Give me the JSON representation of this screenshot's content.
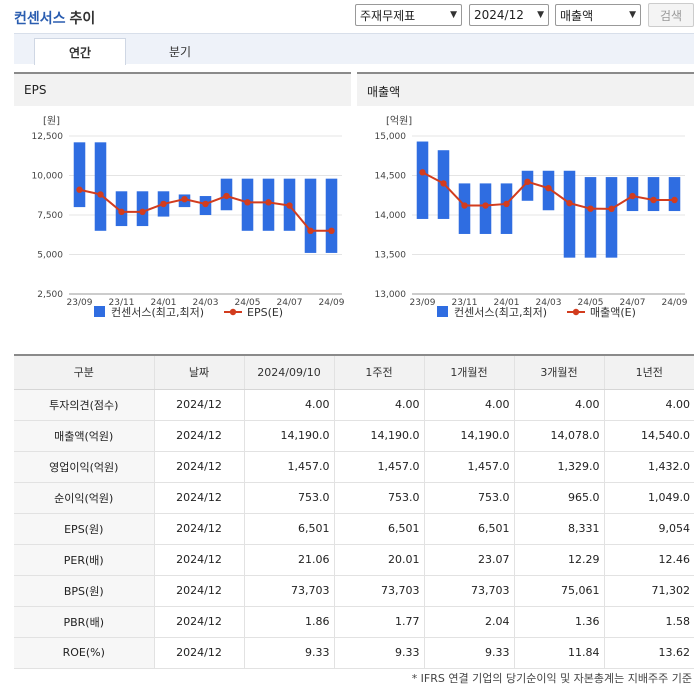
{
  "header": {
    "title": "컨센서스",
    "subtitle": "추이",
    "select_company": "주재무제표",
    "select_period": "2024/12",
    "select_metric": "매출액",
    "search_label": "검색"
  },
  "tabs": [
    {
      "label": "연간",
      "active": true
    },
    {
      "label": "분기",
      "active": false
    }
  ],
  "charts": {
    "eps": {
      "title": "EPS",
      "unit": "[원]",
      "legend_bar": "컨센서스(최고,최저)",
      "legend_line": "EPS(E)"
    },
    "revenue": {
      "title": "매출액",
      "unit": "[억원]",
      "legend_bar": "컨센서스(최고,최저)",
      "legend_line": "매출액(E)"
    }
  },
  "chart_data": [
    {
      "type": "bar",
      "title": "EPS",
      "ylabel": "[원]",
      "ylim": [
        2500,
        12500
      ],
      "yticks": [
        "12,500",
        "10,000",
        "7,500",
        "5,000",
        "2,500"
      ],
      "categories": [
        "23/09",
        "23/10",
        "23/11",
        "23/12",
        "24/01",
        "24/02",
        "24/03",
        "24/04",
        "24/05",
        "24/06",
        "24/07",
        "24/08",
        "24/09"
      ],
      "xtick_labels": [
        "23/09",
        "23/11",
        "24/01",
        "24/03",
        "24/05",
        "24/07",
        "24/09"
      ],
      "series": [
        {
          "name": "컨센서스(최고,최저)",
          "kind": "range",
          "high": [
            12100,
            12100,
            9000,
            9000,
            9000,
            8800,
            8700,
            9800,
            9800,
            9800,
            9800,
            9800,
            9800
          ],
          "low": [
            8000,
            6500,
            6800,
            6800,
            7400,
            8000,
            7500,
            7800,
            6500,
            6500,
            6500,
            5100,
            5100
          ],
          "color": "#2f6de1"
        },
        {
          "name": "EPS(E)",
          "kind": "line",
          "values": [
            9100,
            8800,
            7700,
            7700,
            8200,
            8500,
            8200,
            8700,
            8300,
            8300,
            8100,
            6500,
            6500
          ],
          "color": "#d23c1e"
        }
      ]
    },
    {
      "type": "bar",
      "title": "매출액",
      "ylabel": "[억원]",
      "ylim": [
        13000,
        15000
      ],
      "yticks": [
        "15,000",
        "14,500",
        "14,000",
        "13,500",
        "13,000"
      ],
      "categories": [
        "23/09",
        "23/10",
        "23/11",
        "23/12",
        "24/01",
        "24/02",
        "24/03",
        "24/04",
        "24/05",
        "24/06",
        "24/07",
        "24/08",
        "24/09"
      ],
      "xtick_labels": [
        "23/09",
        "23/11",
        "24/01",
        "24/03",
        "24/05",
        "24/07",
        "24/09"
      ],
      "series": [
        {
          "name": "컨센서스(최고,최저)",
          "kind": "range",
          "high": [
            14930,
            14820,
            14400,
            14400,
            14400,
            14560,
            14560,
            14560,
            14480,
            14480,
            14480,
            14480,
            14480
          ],
          "low": [
            13950,
            13950,
            13760,
            13760,
            13760,
            14180,
            14060,
            13460,
            13460,
            13460,
            14050,
            14050,
            14050
          ],
          "color": "#2f6de1"
        },
        {
          "name": "매출액(E)",
          "kind": "line",
          "values": [
            14540,
            14400,
            14120,
            14120,
            14140,
            14420,
            14340,
            14150,
            14080,
            14078,
            14240,
            14190,
            14190
          ],
          "color": "#d23c1e"
        }
      ]
    }
  ],
  "table": {
    "headers": [
      "구분",
      "날짜",
      "2024/09/10",
      "1주전",
      "1개월전",
      "3개월전",
      "1년전"
    ],
    "rows": [
      {
        "label": "투자의견(점수)",
        "date": "2024/12",
        "values": [
          "4.00",
          "4.00",
          "4.00",
          "4.00",
          "4.00"
        ]
      },
      {
        "label": "매출액(억원)",
        "date": "2024/12",
        "values": [
          "14,190.0",
          "14,190.0",
          "14,190.0",
          "14,078.0",
          "14,540.0"
        ]
      },
      {
        "label": "영업이익(억원)",
        "date": "2024/12",
        "values": [
          "1,457.0",
          "1,457.0",
          "1,457.0",
          "1,329.0",
          "1,432.0"
        ]
      },
      {
        "label": "순이익(억원)",
        "date": "2024/12",
        "values": [
          "753.0",
          "753.0",
          "753.0",
          "965.0",
          "1,049.0"
        ]
      },
      {
        "label": "EPS(원)",
        "date": "2024/12",
        "values": [
          "6,501",
          "6,501",
          "6,501",
          "8,331",
          "9,054"
        ]
      },
      {
        "label": "PER(배)",
        "date": "2024/12",
        "values": [
          "21.06",
          "20.01",
          "23.07",
          "12.29",
          "12.46"
        ]
      },
      {
        "label": "BPS(원)",
        "date": "2024/12",
        "values": [
          "73,703",
          "73,703",
          "73,703",
          "75,061",
          "71,302"
        ]
      },
      {
        "label": "PBR(배)",
        "date": "2024/12",
        "values": [
          "1.86",
          "1.77",
          "2.04",
          "1.36",
          "1.58"
        ]
      },
      {
        "label": "ROE(%)",
        "date": "2024/12",
        "values": [
          "9.33",
          "9.33",
          "9.33",
          "11.84",
          "13.62"
        ]
      }
    ]
  },
  "footnote": "* IFRS 연결 기업의 당기순이익 및 자본총계는 지배주주 기준"
}
